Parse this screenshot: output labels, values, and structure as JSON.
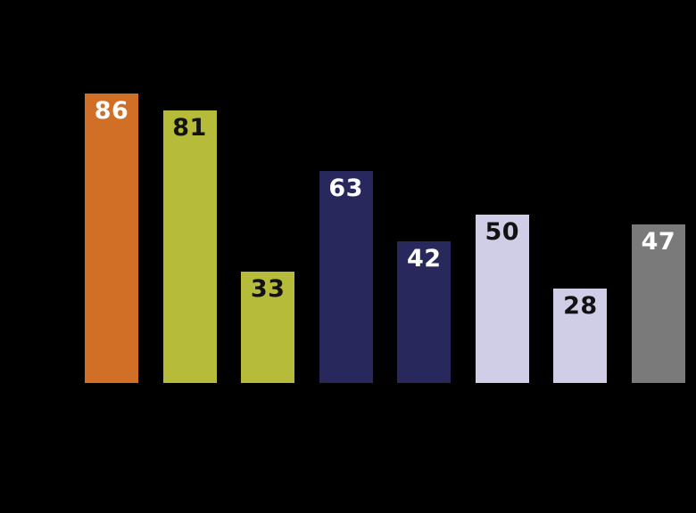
{
  "chart_data": {
    "type": "bar",
    "title": "",
    "xlabel": "",
    "ylabel": "",
    "ylim": [
      0,
      100
    ],
    "grid": false,
    "background_color": "#000000",
    "values": [
      86,
      81,
      33,
      63,
      42,
      50,
      28,
      47
    ],
    "bars": [
      {
        "value": 86,
        "color": "#d06f25",
        "label_color": "#ffffff"
      },
      {
        "value": 81,
        "color": "#b6bc39",
        "label_color": "#121212"
      },
      {
        "value": 33,
        "color": "#b6bc39",
        "label_color": "#121212"
      },
      {
        "value": 63,
        "color": "#28285c",
        "label_color": "#ffffff"
      },
      {
        "value": 42,
        "color": "#28285c",
        "label_color": "#ffffff"
      },
      {
        "value": 50,
        "color": "#d0cde6",
        "label_color": "#121212"
      },
      {
        "value": 28,
        "color": "#d0cde6",
        "label_color": "#121212"
      },
      {
        "value": 47,
        "color": "#7a7a7a",
        "label_color": "#ffffff"
      }
    ],
    "pixels_per_unit": 3.78
  }
}
